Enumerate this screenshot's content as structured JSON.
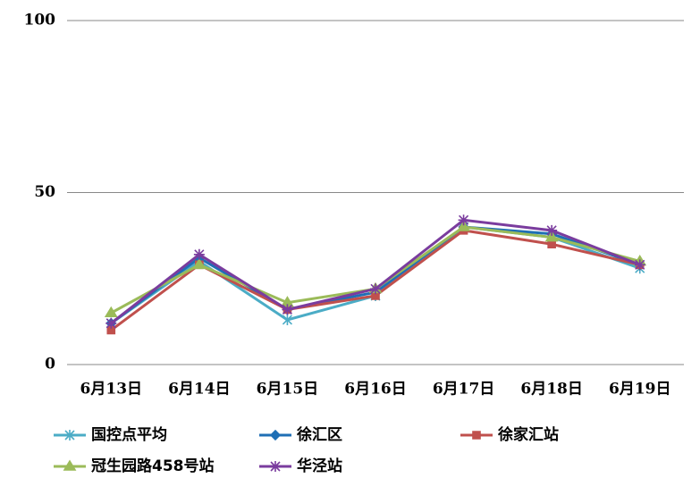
{
  "chart_data": {
    "type": "line",
    "categories": [
      "6月13日",
      "6月14日",
      "6月15日",
      "6月16日",
      "6月17日",
      "6月18日",
      "6月19日"
    ],
    "series": [
      {
        "name": "国控点平均",
        "color": "#4bacc6",
        "marker": "asterisk",
        "values": [
          12,
          30,
          13,
          20,
          40,
          37,
          28
        ]
      },
      {
        "name": "徐汇区",
        "color": "#1f6fb5",
        "marker": "diamond",
        "values": [
          12,
          31,
          16,
          21,
          40,
          38,
          29
        ]
      },
      {
        "name": "徐家汇站",
        "color": "#c0504d",
        "marker": "square",
        "values": [
          10,
          29,
          16,
          20,
          39,
          35,
          29
        ]
      },
      {
        "name": "冠生园路458号站",
        "color": "#9bbb59",
        "marker": "triangle",
        "values": [
          15,
          29,
          18,
          22,
          40,
          37,
          30
        ]
      },
      {
        "name": "华泾站",
        "color": "#7a3c9e",
        "marker": "star",
        "values": [
          12,
          32,
          16,
          22,
          42,
          39,
          29
        ]
      }
    ],
    "ylim": [
      0,
      100
    ],
    "yticks": [
      0,
      50,
      100
    ],
    "grid": true
  }
}
